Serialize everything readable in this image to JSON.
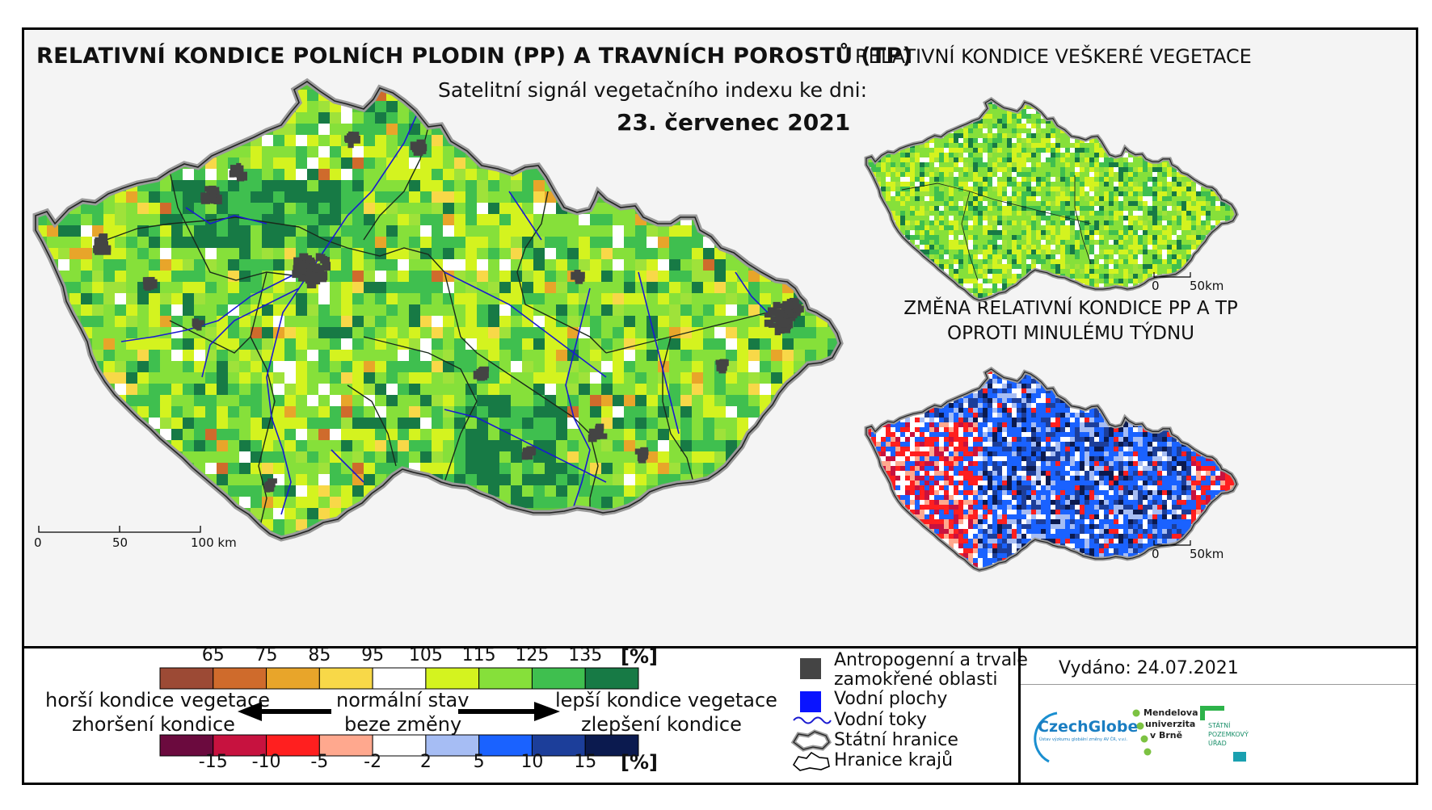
{
  "title": "RELATIVNÍ KONDICE POLNÍCH PLODIN (PP) A TRAVNÍCH POROSTŮ (TP)",
  "subtitle": "Satelitní signál vegetačního indexu ke dni:",
  "date": "23. červenec 2021",
  "inset_top_title": "RELATIVNÍ KONDICE VEŠKERÉ VEGETACE",
  "inset_bottom_title_line1": "ZMĚNA RELATIVNÍ KONDICE PP A TP",
  "inset_bottom_title_line2": "OPROTI MINULÉMU TÝDNU",
  "scale_main": {
    "zero": "0",
    "mid": "50",
    "end": "100 km"
  },
  "scale_inset_top": {
    "zero": "0",
    "end": "50km"
  },
  "scale_inset_bottom": {
    "zero": "0",
    "end": "50km"
  },
  "legend_condition": {
    "unit": "[%]",
    "ticks": [
      "65",
      "75",
      "85",
      "95",
      "105",
      "115",
      "125",
      "135"
    ],
    "colors": [
      "#9c4a35",
      "#cf6b2c",
      "#e8a52a",
      "#f8d848",
      "#ffffff",
      "#d4f31f",
      "#86e03a",
      "#3fbf4f",
      "#177a45"
    ]
  },
  "legend_change": {
    "unit": "[%]",
    "ticks": [
      "-15",
      "-10",
      "-5",
      "-2",
      "2",
      "5",
      "10",
      "15"
    ],
    "colors": [
      "#6b0a3e",
      "#c7123f",
      "#ff1f1f",
      "#ffa88e",
      "#ffffff",
      "#a6bdf4",
      "#1a62ff",
      "#1c3e9a",
      "#0b1a4f"
    ]
  },
  "legend_labels": {
    "worse_1": "horší kondice vegetace",
    "worse_2": "zhoršení kondice",
    "normal_1": "normální stav",
    "normal_2": "beze změny",
    "better_1": "lepší kondice vegetace",
    "better_2": "zlepšení kondice"
  },
  "legend_symbols": {
    "anthropogenic_1": "Antropogenní a trvale",
    "anthropogenic_2": "zamokřené oblasti",
    "water_bodies": "Vodní plochy",
    "water_courses": "Vodní toky",
    "state_border": "Státní hranice",
    "region_border": "Hranice krajů"
  },
  "colors": {
    "anthropogenic": "#444444",
    "water_body": "#0a14ff",
    "water_course": "#1a1ad0"
  },
  "issued": "Vydáno: 24.07.2021",
  "logos": {
    "czechglobe": "CzechGlobe",
    "czechglobe_sub": "Ústav výzkumu globální změny AV ČR, v.v.i.",
    "mendel_1": "Mendelova",
    "mendel_2": "univerzita",
    "mendel_3": "v Brně",
    "spu_1": "STÁTNÍ",
    "spu_2": "POZEMKOVÝ",
    "spu_3": "ÚŘAD"
  }
}
